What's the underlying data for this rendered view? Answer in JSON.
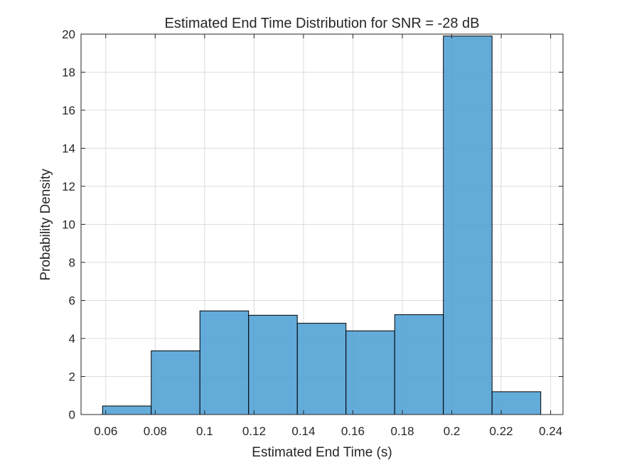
{
  "chart_data": {
    "type": "bar",
    "title": "Estimated End Time Distribution for SNR = -28 dB",
    "xlabel": "Estimated End Time (s)",
    "ylabel": "Probability Density",
    "bin_edges": [
      0.0587,
      0.0784,
      0.0981,
      0.1178,
      0.1375,
      0.1572,
      0.1769,
      0.1966,
      0.2163,
      0.236
    ],
    "values": [
      0.45,
      3.35,
      5.45,
      5.22,
      4.8,
      4.4,
      5.25,
      19.9,
      1.2
    ],
    "xlim": [
      0.05,
      0.245
    ],
    "ylim": [
      0,
      20
    ],
    "xticks": [
      0.06,
      0.08,
      0.1,
      0.12,
      0.14,
      0.16,
      0.18,
      0.2,
      0.22,
      0.24
    ],
    "xtick_labels": [
      "0.06",
      "0.08",
      "0.1",
      "0.12",
      "0.14",
      "0.16",
      "0.18",
      "0.2",
      "0.22",
      "0.24"
    ],
    "yticks": [
      0,
      2,
      4,
      6,
      8,
      10,
      12,
      14,
      16,
      18,
      20
    ],
    "ytick_labels": [
      "0",
      "2",
      "4",
      "6",
      "8",
      "10",
      "12",
      "14",
      "16",
      "18",
      "20"
    ],
    "grid": true,
    "bar_color": "#4d9fd4",
    "bar_edge_color": "#000000"
  }
}
